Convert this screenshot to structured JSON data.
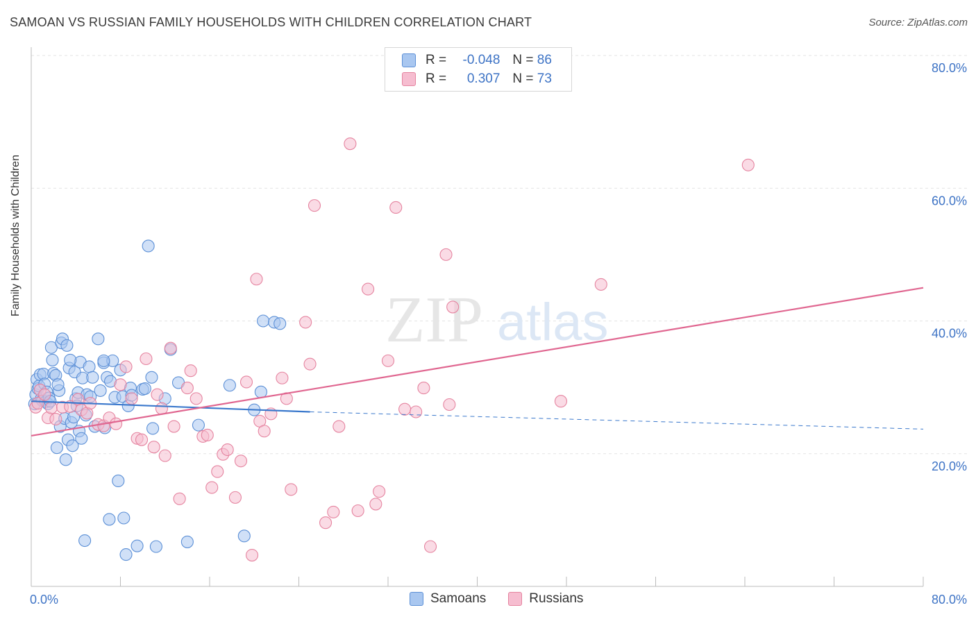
{
  "header": {
    "title": "SAMOAN VS RUSSIAN FAMILY HOUSEHOLDS WITH CHILDREN CORRELATION CHART",
    "source": "Source: ZipAtlas.com"
  },
  "watermark": {
    "zip": "ZIP",
    "atlas": "atlas"
  },
  "legend": {
    "samoan": {
      "r_label": "R =",
      "r_value": "-0.048",
      "n_label": "N =",
      "n_value": "86"
    },
    "russian": {
      "r_label": "R =",
      "r_value": "0.307",
      "n_label": "N =",
      "n_value": "73"
    }
  },
  "colors": {
    "samoan_fill": "#a9c7f0",
    "samoan_stroke": "#5b8fd6",
    "samoan_line": "#3a78cc",
    "russian_fill": "#f6bdd0",
    "russian_stroke": "#e5839f",
    "russian_line": "#e06690",
    "axis_label": "#3d73c5",
    "grid": "#e3e3e3"
  },
  "chart_data": {
    "type": "scatter",
    "title": "SAMOAN VS RUSSIAN FAMILY HOUSEHOLDS WITH CHILDREN CORRELATION CHART",
    "xlabel": "",
    "ylabel": "Family Households with Children",
    "xlim": [
      0,
      80
    ],
    "ylim": [
      0,
      80
    ],
    "x_tick_labels": [
      "0.0%",
      "80.0%"
    ],
    "y_tick_labels": [
      "20.0%",
      "40.0%",
      "60.0%",
      "80.0%"
    ],
    "y_ticks": [
      20,
      40,
      60,
      80
    ],
    "grid": true,
    "legend_position": "top-center",
    "series": [
      {
        "name": "Samoans",
        "r": -0.048,
        "n": 86,
        "trend": {
          "x": [
            0,
            25
          ],
          "y": [
            27.9,
            26.3
          ],
          "dashed_extension_to_x": 80,
          "dashed_end_y": 23.7
        },
        "points": [
          [
            0.3,
            27.5
          ],
          [
            0.4,
            28.9
          ],
          [
            0.5,
            31.2
          ],
          [
            0.6,
            29.8
          ],
          [
            0.7,
            30.2
          ],
          [
            0.8,
            31.9
          ],
          [
            0.9,
            28.3
          ],
          [
            1.0,
            28.0
          ],
          [
            1.1,
            32.0
          ],
          [
            1.2,
            30.5
          ],
          [
            1.3,
            27.8
          ],
          [
            1.4,
            29.3
          ],
          [
            1.5,
            27.5
          ],
          [
            1.6,
            28.4
          ],
          [
            1.8,
            36.0
          ],
          [
            1.9,
            34.1
          ],
          [
            2.0,
            32.1
          ],
          [
            2.2,
            31.8
          ],
          [
            2.3,
            20.9
          ],
          [
            2.5,
            29.5
          ],
          [
            2.6,
            24.1
          ],
          [
            2.7,
            36.7
          ],
          [
            2.8,
            37.3
          ],
          [
            3.0,
            25.3
          ],
          [
            3.1,
            19.1
          ],
          [
            3.2,
            36.3
          ],
          [
            3.3,
            22.1
          ],
          [
            3.4,
            32.9
          ],
          [
            3.6,
            24.7
          ],
          [
            3.7,
            21.2
          ],
          [
            3.8,
            25.5
          ],
          [
            3.9,
            32.3
          ],
          [
            4.0,
            28.3
          ],
          [
            4.2,
            29.2
          ],
          [
            4.3,
            23.4
          ],
          [
            4.4,
            33.8
          ],
          [
            4.5,
            22.3
          ],
          [
            4.6,
            31.4
          ],
          [
            4.8,
            6.9
          ],
          [
            4.9,
            25.8
          ],
          [
            5.0,
            28.9
          ],
          [
            5.2,
            33.1
          ],
          [
            5.5,
            31.5
          ],
          [
            5.7,
            24.1
          ],
          [
            6.0,
            37.3
          ],
          [
            6.2,
            29.5
          ],
          [
            6.5,
            33.7
          ],
          [
            6.6,
            23.9
          ],
          [
            6.8,
            31.5
          ],
          [
            7.0,
            10.1
          ],
          [
            7.1,
            30.9
          ],
          [
            7.3,
            34.0
          ],
          [
            7.5,
            28.5
          ],
          [
            7.8,
            15.9
          ],
          [
            8.0,
            32.6
          ],
          [
            8.2,
            28.6
          ],
          [
            8.3,
            10.3
          ],
          [
            8.5,
            4.8
          ],
          [
            8.7,
            27.2
          ],
          [
            8.9,
            29.9
          ],
          [
            9.0,
            28.8
          ],
          [
            9.5,
            6.1
          ],
          [
            10.0,
            29.7
          ],
          [
            10.2,
            29.8
          ],
          [
            10.5,
            51.3
          ],
          [
            10.8,
            31.5
          ],
          [
            10.9,
            23.8
          ],
          [
            11.2,
            6.0
          ],
          [
            12.0,
            28.3
          ],
          [
            12.5,
            35.7
          ],
          [
            13.2,
            30.7
          ],
          [
            14.0,
            6.7
          ],
          [
            15.0,
            24.3
          ],
          [
            17.8,
            30.3
          ],
          [
            19.1,
            7.6
          ],
          [
            20.0,
            26.6
          ],
          [
            20.6,
            29.3
          ],
          [
            20.8,
            40.0
          ],
          [
            21.8,
            39.8
          ],
          [
            22.3,
            39.6
          ],
          [
            6.5,
            34.0
          ],
          [
            4.1,
            27.2
          ],
          [
            2.4,
            30.4
          ],
          [
            1.7,
            27.9
          ],
          [
            3.5,
            34.1
          ],
          [
            5.3,
            28.6
          ]
        ]
      },
      {
        "name": "Russians",
        "r": 0.307,
        "n": 73,
        "trend": {
          "x": [
            0,
            80
          ],
          "y": [
            22.7,
            45.0
          ]
        },
        "points": [
          [
            0.4,
            27.0
          ],
          [
            0.6,
            27.6
          ],
          [
            0.8,
            29.6
          ],
          [
            1.2,
            28.9
          ],
          [
            1.5,
            25.4
          ],
          [
            1.8,
            26.9
          ],
          [
            2.2,
            25.2
          ],
          [
            2.8,
            27.0
          ],
          [
            3.5,
            27.1
          ],
          [
            4.2,
            28.2
          ],
          [
            4.5,
            26.6
          ],
          [
            5.0,
            26.1
          ],
          [
            5.3,
            27.6
          ],
          [
            6.0,
            24.4
          ],
          [
            6.5,
            24.2
          ],
          [
            7.0,
            25.4
          ],
          [
            7.6,
            24.5
          ],
          [
            8.0,
            30.4
          ],
          [
            8.5,
            33.1
          ],
          [
            9.0,
            28.3
          ],
          [
            9.5,
            22.3
          ],
          [
            9.9,
            22.1
          ],
          [
            10.3,
            34.3
          ],
          [
            11.0,
            21.0
          ],
          [
            11.3,
            28.9
          ],
          [
            11.7,
            26.8
          ],
          [
            12.0,
            19.7
          ],
          [
            12.5,
            35.9
          ],
          [
            12.8,
            24.1
          ],
          [
            13.3,
            13.2
          ],
          [
            14.0,
            29.9
          ],
          [
            14.3,
            32.5
          ],
          [
            14.8,
            28.3
          ],
          [
            15.4,
            22.6
          ],
          [
            15.8,
            22.8
          ],
          [
            16.2,
            14.9
          ],
          [
            16.7,
            17.3
          ],
          [
            17.2,
            19.9
          ],
          [
            17.6,
            20.6
          ],
          [
            18.3,
            13.4
          ],
          [
            18.8,
            18.9
          ],
          [
            19.3,
            30.8
          ],
          [
            19.8,
            4.7
          ],
          [
            20.2,
            46.3
          ],
          [
            20.5,
            24.9
          ],
          [
            20.9,
            23.4
          ],
          [
            21.5,
            26.0
          ],
          [
            22.5,
            31.4
          ],
          [
            22.9,
            28.3
          ],
          [
            23.3,
            14.6
          ],
          [
            24.6,
            39.8
          ],
          [
            25.0,
            33.5
          ],
          [
            25.4,
            57.4
          ],
          [
            26.4,
            9.6
          ],
          [
            27.1,
            11.2
          ],
          [
            27.6,
            24.1
          ],
          [
            28.6,
            66.7
          ],
          [
            29.3,
            11.4
          ],
          [
            30.2,
            44.8
          ],
          [
            30.9,
            12.4
          ],
          [
            31.2,
            14.3
          ],
          [
            32.0,
            34.0
          ],
          [
            32.7,
            57.1
          ],
          [
            33.5,
            26.7
          ],
          [
            34.5,
            26.3
          ],
          [
            35.2,
            29.9
          ],
          [
            35.8,
            6.0
          ],
          [
            37.2,
            50.0
          ],
          [
            37.5,
            27.4
          ],
          [
            37.8,
            42.1
          ],
          [
            47.5,
            27.9
          ],
          [
            51.1,
            45.5
          ],
          [
            64.3,
            63.5
          ]
        ]
      }
    ]
  },
  "bottom_legend": {
    "samoans": "Samoans",
    "russians": "Russians"
  }
}
